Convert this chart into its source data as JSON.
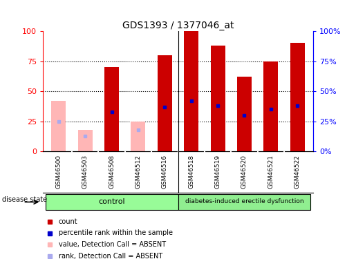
{
  "title": "GDS1393 / 1377046_at",
  "samples": [
    "GSM46500",
    "GSM46503",
    "GSM46508",
    "GSM46512",
    "GSM46516",
    "GSM46518",
    "GSM46519",
    "GSM46520",
    "GSM46521",
    "GSM46522"
  ],
  "bar_heights": [
    42,
    18,
    70,
    25,
    80,
    100,
    88,
    62,
    75,
    90
  ],
  "rank_values": [
    25,
    13,
    33,
    18,
    37,
    42,
    38,
    30,
    35,
    38
  ],
  "absent": [
    true,
    true,
    false,
    true,
    false,
    false,
    false,
    false,
    false,
    false
  ],
  "n_control": 5,
  "bar_color_present": "#CC0000",
  "bar_color_absent": "#FFB6B6",
  "rank_color_present": "#0000CC",
  "rank_color_absent": "#AAAAEE",
  "label_bg": "#D3D3D3",
  "group_color_control": "#98FB98",
  "group_color_diabetes": "#90EE90",
  "yticks": [
    0,
    25,
    50,
    75,
    100
  ],
  "background_color": "#ffffff",
  "legend_items": [
    {
      "color": "#CC0000",
      "label": "count"
    },
    {
      "color": "#0000CC",
      "label": "percentile rank within the sample"
    },
    {
      "color": "#FFB6B6",
      "label": "value, Detection Call = ABSENT"
    },
    {
      "color": "#AAAAEE",
      "label": "rank, Detection Call = ABSENT"
    }
  ]
}
